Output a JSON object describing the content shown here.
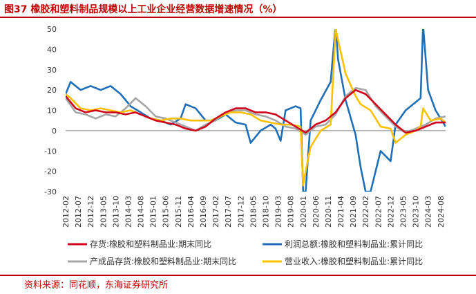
{
  "header": {
    "title": "图37  橡胶和塑料制品规模以上工业企业经营数据增速情况（%）"
  },
  "footer": {
    "source": "资料来源：同花顺，东海证券研究所"
  },
  "colors": {
    "accent": "#c00000",
    "inventory": "#d0021b",
    "profit": "#1f6fb8",
    "finished_goods": "#a6a6a6",
    "revenue": "#ffc000"
  },
  "chart_data": {
    "type": "line",
    "title": "",
    "xlabel": "",
    "ylabel": "",
    "ylim": [
      -30,
      50
    ],
    "yticks": [
      -30,
      -20,
      -10,
      0,
      10,
      20,
      30,
      40,
      50
    ],
    "x_range": [
      "2012-02",
      "2024-10"
    ],
    "xticks": [
      "2012-02",
      "2012-07",
      "2012-12",
      "2013-05",
      "2013-10",
      "2014-03",
      "2014-08",
      "2015-01",
      "2015-06",
      "2015-11",
      "2016-04",
      "2016-09",
      "2017-02",
      "2017-07",
      "2017-12",
      "2018-05",
      "2018-10",
      "2019-03",
      "2019-08",
      "2020-01",
      "2020-06",
      "2020-11",
      "2021-04",
      "2021-09",
      "2022-02",
      "2022-07",
      "2022-12",
      "2023-05",
      "2023-10",
      "2024-03",
      "2024-08"
    ],
    "grid": false,
    "legend_position": "bottom",
    "series": [
      {
        "name": "存货:橡胶和塑料制品业:期末同比",
        "x": [
          "2012-02",
          "2012-06",
          "2012-10",
          "2013-02",
          "2013-06",
          "2013-10",
          "2014-02",
          "2014-06",
          "2014-10",
          "2015-02",
          "2015-06",
          "2015-10",
          "2016-02",
          "2016-06",
          "2016-10",
          "2017-02",
          "2017-06",
          "2017-10",
          "2018-02",
          "2018-06",
          "2018-10",
          "2019-02",
          "2019-06",
          "2019-10",
          "2020-02",
          "2020-06",
          "2020-10",
          "2021-02",
          "2021-06",
          "2021-10",
          "2022-02",
          "2022-06",
          "2022-10",
          "2023-02",
          "2023-06",
          "2023-10",
          "2024-02",
          "2024-06",
          "2024-10"
        ],
        "values": [
          17,
          11,
          9,
          10,
          9,
          9,
          8,
          9,
          7,
          5,
          4,
          3,
          1,
          0,
          2,
          6,
          9,
          11,
          11,
          9,
          9,
          8,
          5,
          2,
          -1,
          3,
          5,
          9,
          16,
          20,
          18,
          13,
          8,
          3,
          -1,
          0,
          2,
          4,
          4
        ]
      },
      {
        "name": "利润总额:橡胶和塑料制品业:累计同比",
        "x": [
          "2012-02",
          "2012-04",
          "2012-08",
          "2012-12",
          "2013-04",
          "2013-08",
          "2013-12",
          "2014-04",
          "2014-08",
          "2014-12",
          "2015-04",
          "2015-08",
          "2015-12",
          "2016-02",
          "2016-06",
          "2016-10",
          "2017-02",
          "2017-06",
          "2017-10",
          "2018-02",
          "2018-04",
          "2018-08",
          "2018-12",
          "2019-02",
          "2019-04",
          "2019-06",
          "2019-10",
          "2019-12",
          "2020-01",
          "2020-02",
          "2020-04",
          "2020-08",
          "2020-12",
          "2021-02",
          "2021-03",
          "2021-06",
          "2021-10",
          "2021-12",
          "2022-02",
          "2022-04",
          "2022-08",
          "2022-12",
          "2023-02",
          "2023-06",
          "2023-10",
          "2023-12",
          "2024-01",
          "2024-03",
          "2024-06",
          "2024-10"
        ],
        "values": [
          18,
          24,
          20,
          22,
          20,
          22,
          18,
          12,
          9,
          6,
          5,
          3,
          6,
          13,
          11,
          5,
          5,
          8,
          4,
          3,
          -6,
          0,
          3,
          1,
          -5,
          10,
          12,
          11,
          -30,
          -30,
          5,
          15,
          24,
          52,
          35,
          15,
          -2,
          -18,
          -30,
          -30,
          -10,
          -15,
          3,
          10,
          14,
          16,
          52,
          20,
          10,
          2
        ]
      },
      {
        "name": "产成品存货:橡胶和塑料制品业:期末同比",
        "x": [
          "2012-02",
          "2012-06",
          "2012-10",
          "2013-02",
          "2013-06",
          "2013-10",
          "2014-02",
          "2014-06",
          "2014-10",
          "2015-02",
          "2015-06",
          "2015-10",
          "2016-02",
          "2016-06",
          "2016-10",
          "2017-02",
          "2017-06",
          "2017-10",
          "2018-02",
          "2018-06",
          "2018-10",
          "2019-02",
          "2019-06",
          "2019-10",
          "2020-02",
          "2020-06",
          "2020-10",
          "2021-02",
          "2021-06",
          "2021-10",
          "2022-02",
          "2022-06",
          "2022-10",
          "2023-02",
          "2023-06",
          "2023-10",
          "2024-02",
          "2024-06",
          "2024-10"
        ],
        "values": [
          16,
          9,
          8,
          6,
          8,
          7,
          11,
          16,
          12,
          7,
          6,
          4,
          2,
          0,
          3,
          5,
          9,
          10,
          10,
          8,
          7,
          5,
          2,
          1,
          -2,
          2,
          3,
          8,
          17,
          21,
          20,
          12,
          7,
          2,
          -1,
          1,
          3,
          6,
          7
        ]
      },
      {
        "name": "营业收入:橡胶和塑料制品业:累计同比",
        "x": [
          "2012-02",
          "2012-04",
          "2012-08",
          "2012-12",
          "2013-04",
          "2013-08",
          "2013-12",
          "2014-04",
          "2014-08",
          "2014-12",
          "2015-04",
          "2015-08",
          "2015-12",
          "2016-04",
          "2016-08",
          "2016-12",
          "2017-04",
          "2017-08",
          "2017-12",
          "2018-04",
          "2018-08",
          "2018-12",
          "2019-04",
          "2019-08",
          "2019-12",
          "2020-01",
          "2020-02",
          "2020-04",
          "2020-08",
          "2020-12",
          "2021-02",
          "2021-06",
          "2021-10",
          "2021-12",
          "2022-04",
          "2022-08",
          "2022-12",
          "2023-02",
          "2023-06",
          "2023-10",
          "2023-12",
          "2024-01",
          "2024-04",
          "2024-08",
          "2024-10"
        ],
        "values": [
          18,
          16,
          11,
          10,
          11,
          10,
          9,
          10,
          8,
          6,
          5,
          6,
          6,
          5,
          5,
          5,
          7,
          9,
          9,
          8,
          5,
          4,
          3,
          3,
          2,
          -27,
          -20,
          -8,
          0,
          3,
          50,
          28,
          17,
          13,
          10,
          2,
          1,
          -6,
          -2,
          0,
          2,
          11,
          5,
          6,
          4
        ]
      }
    ]
  }
}
